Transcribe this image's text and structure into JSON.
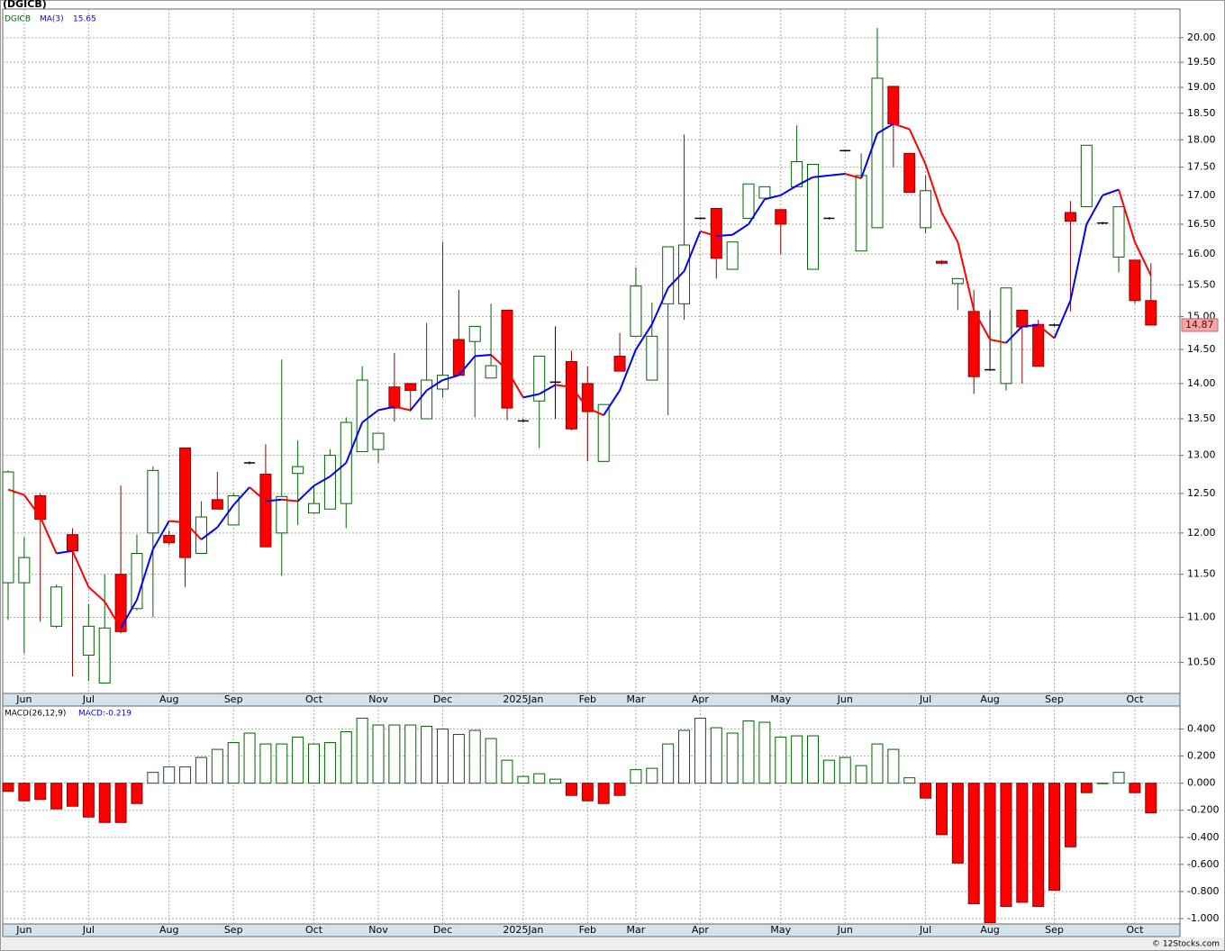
{
  "chart_data": [
    {
      "type": "candlestick",
      "title": "(DGICB)",
      "symbol": "DGICB",
      "log_scale": true,
      "grid": true,
      "up_color": "#006400",
      "down_color": "#ff0000",
      "categories": [
        null,
        "Jun",
        null,
        null,
        null,
        "Jul",
        null,
        null,
        null,
        null,
        "Aug",
        null,
        null,
        null,
        "Sep",
        null,
        null,
        null,
        null,
        "Oct",
        null,
        null,
        null,
        "Nov",
        null,
        null,
        null,
        "Dec",
        null,
        null,
        null,
        null,
        "2025Jan",
        null,
        null,
        null,
        "Feb",
        null,
        null,
        "Mar",
        null,
        null,
        null,
        "Apr",
        null,
        null,
        null,
        null,
        "May",
        null,
        null,
        null,
        "Jun",
        null,
        null,
        null,
        null,
        "Jul",
        null,
        null,
        null,
        "Aug",
        null,
        null,
        null,
        "Sep",
        null,
        null,
        null,
        null,
        "Oct",
        null
      ],
      "open": [
        11.4,
        11.4,
        12.47,
        10.9,
        11.98,
        10.58,
        10.28,
        11.5,
        11.1,
        12.0,
        11.97,
        13.1,
        11.75,
        12.42,
        12.1,
        12.9,
        12.75,
        12.0,
        12.76,
        12.25,
        12.3,
        12.37,
        13.05,
        13.08,
        13.95,
        14.0,
        13.5,
        13.92,
        14.65,
        14.62,
        14.08,
        15.1,
        13.47,
        13.75,
        14.02,
        14.32,
        14.0,
        12.92,
        14.4,
        14.7,
        14.05,
        15.2,
        15.2,
        16.6,
        16.77,
        15.75,
        16.6,
        16.95,
        16.75,
        17.15,
        15.75,
        16.6,
        17.8,
        16.05,
        16.44,
        19.02,
        17.75,
        16.44,
        15.88,
        15.52,
        15.08,
        14.2,
        14.0,
        15.1,
        14.88,
        14.87,
        16.7,
        16.8,
        16.52,
        15.95,
        15.9,
        15.25
      ],
      "high": [
        12.8,
        11.95,
        12.5,
        11.38,
        12.06,
        11.15,
        11.5,
        12.6,
        11.98,
        12.85,
        12.03,
        13.1,
        12.4,
        12.78,
        12.5,
        12.92,
        13.15,
        14.35,
        13.2,
        12.6,
        13.08,
        13.52,
        14.25,
        13.3,
        14.45,
        14.0,
        14.9,
        16.2,
        15.42,
        14.85,
        15.2,
        15.1,
        13.5,
        14.4,
        14.85,
        14.48,
        14.25,
        13.7,
        14.75,
        15.78,
        15.22,
        16.12,
        18.1,
        16.62,
        16.77,
        16.2,
        17.2,
        17.15,
        16.75,
        18.27,
        17.55,
        16.62,
        17.82,
        17.75,
        20.2,
        19.02,
        17.75,
        17.35,
        15.9,
        15.6,
        15.42,
        15.1,
        15.45,
        15.1,
        14.95,
        14.89,
        16.9,
        17.9,
        16.54,
        16.8,
        15.9,
        15.85
      ],
      "low": [
        10.97,
        10.6,
        10.95,
        10.88,
        10.35,
        10.3,
        10.28,
        10.82,
        11.08,
        11.0,
        11.85,
        11.35,
        11.75,
        12.3,
        12.1,
        12.88,
        11.83,
        11.48,
        12.1,
        12.25,
        12.3,
        12.06,
        13.05,
        12.9,
        13.46,
        13.6,
        13.5,
        13.8,
        14.12,
        13.52,
        14.08,
        13.48,
        13.45,
        13.1,
        13.5,
        13.34,
        12.92,
        12.92,
        14.18,
        14.7,
        14.05,
        13.55,
        14.95,
        16.58,
        15.6,
        15.75,
        16.6,
        16.95,
        16.0,
        17.15,
        15.75,
        16.58,
        17.78,
        16.05,
        16.44,
        17.5,
        17.05,
        16.35,
        15.83,
        15.1,
        13.85,
        14.18,
        13.9,
        14.0,
        14.25,
        14.85,
        15.08,
        16.8,
        16.5,
        15.7,
        15.2,
        14.87
      ],
      "close": [
        12.78,
        11.7,
        12.17,
        11.35,
        11.78,
        10.9,
        10.88,
        10.84,
        11.75,
        12.8,
        11.88,
        11.7,
        12.2,
        12.3,
        12.47,
        12.9,
        11.83,
        12.46,
        12.85,
        12.37,
        13.0,
        13.45,
        14.05,
        13.3,
        13.65,
        13.9,
        14.05,
        14.12,
        14.12,
        14.85,
        14.26,
        13.65,
        13.47,
        14.4,
        14.02,
        13.36,
        13.6,
        13.7,
        14.18,
        15.48,
        14.7,
        16.12,
        16.15,
        16.6,
        15.93,
        16.2,
        17.2,
        17.15,
        16.5,
        17.6,
        17.55,
        16.6,
        17.8,
        17.35,
        19.18,
        18.3,
        17.05,
        17.08,
        15.85,
        15.6,
        14.1,
        14.2,
        15.45,
        14.84,
        14.25,
        14.87,
        16.55,
        17.9,
        16.52,
        16.8,
        15.25,
        14.87
      ],
      "ma": {
        "name": "MA(3)",
        "up_color": "#0000ff",
        "down_color": "#ff0000",
        "values": [
          12.55,
          12.48,
          12.2,
          11.75,
          11.78,
          11.35,
          11.18,
          10.88,
          11.2,
          11.8,
          12.15,
          12.13,
          11.92,
          12.07,
          12.35,
          12.58,
          12.4,
          12.42,
          12.4,
          12.6,
          12.72,
          12.9,
          13.45,
          13.62,
          13.67,
          13.62,
          13.9,
          14.05,
          14.12,
          14.4,
          14.42,
          14.2,
          13.8,
          13.85,
          13.98,
          13.95,
          13.65,
          13.55,
          13.9,
          14.5,
          14.88,
          15.45,
          15.72,
          16.38,
          16.3,
          16.32,
          16.5,
          16.93,
          17.0,
          17.17,
          17.32,
          17.35,
          17.38,
          17.3,
          18.12,
          18.3,
          18.2,
          17.55,
          16.7,
          16.2,
          15.1,
          14.65,
          14.6,
          14.85,
          14.87,
          14.67,
          15.25,
          16.5,
          17.0,
          17.1,
          16.2,
          15.65
        ]
      },
      "ylim": [
        10.17,
        20.6
      ],
      "yticks": [
        {
          "value": 10.5,
          "label": "10.50"
        },
        {
          "value": 11,
          "label": "11.00"
        },
        {
          "value": 11.5,
          "label": "11.50"
        },
        {
          "value": 12,
          "label": "12.00"
        },
        {
          "value": 12.5,
          "label": "12.50"
        },
        {
          "value": 13,
          "label": "13.00"
        },
        {
          "value": 13.5,
          "label": "13.50"
        },
        {
          "value": 14,
          "label": "14.00"
        },
        {
          "value": 14.5,
          "label": "14.50"
        },
        {
          "value": 15,
          "label": "15.00"
        },
        {
          "value": 15.5,
          "label": "15.50"
        },
        {
          "value": 16,
          "label": "16.00"
        },
        {
          "value": 16.5,
          "label": "16.50"
        },
        {
          "value": 17,
          "label": "17.00"
        },
        {
          "value": 17.5,
          "label": "17.50"
        },
        {
          "value": 18,
          "label": "18.00"
        },
        {
          "value": 18.5,
          "label": "18.50"
        },
        {
          "value": 19,
          "label": "19.00"
        },
        {
          "value": 19.5,
          "label": "19.50"
        },
        {
          "value": 20,
          "label": "20.00"
        }
      ]
    },
    {
      "type": "bar",
      "name": "MACD(26,12,9)",
      "value_text": "MACD:-0.219",
      "grid": true,
      "up_color": "#006400",
      "down_color": "#ff0000",
      "categories": [
        null,
        "Jun",
        null,
        null,
        null,
        "Jul",
        null,
        null,
        null,
        null,
        "Aug",
        null,
        null,
        null,
        "Sep",
        null,
        null,
        null,
        null,
        "Oct",
        null,
        null,
        null,
        "Nov",
        null,
        null,
        null,
        "Dec",
        null,
        null,
        null,
        null,
        "2025Jan",
        null,
        null,
        null,
        "Feb",
        null,
        null,
        "Mar",
        null,
        null,
        null,
        "Apr",
        null,
        null,
        null,
        null,
        "May",
        null,
        null,
        null,
        "Jun",
        null,
        null,
        null,
        null,
        "Jul",
        null,
        null,
        null,
        "Aug",
        null,
        null,
        null,
        "Sep",
        null,
        null,
        null,
        null,
        "Oct",
        null
      ],
      "values": [
        -0.06,
        -0.13,
        -0.12,
        -0.19,
        -0.17,
        -0.25,
        -0.29,
        -0.29,
        -0.15,
        0.08,
        0.12,
        0.12,
        0.19,
        0.25,
        0.3,
        0.37,
        0.29,
        0.29,
        0.34,
        0.29,
        0.3,
        0.38,
        0.48,
        0.43,
        0.43,
        0.43,
        0.42,
        0.4,
        0.36,
        0.39,
        0.33,
        0.17,
        0.05,
        0.07,
        0.03,
        -0.09,
        -0.13,
        -0.15,
        -0.09,
        0.1,
        0.11,
        0.29,
        0.39,
        0.48,
        0.41,
        0.37,
        0.46,
        0.45,
        0.34,
        0.35,
        0.35,
        0.17,
        0.19,
        0.13,
        0.29,
        0.25,
        0.04,
        -0.11,
        -0.38,
        -0.59,
        -0.89,
        -1.03,
        -0.91,
        -0.88,
        -0.91,
        -0.79,
        -0.47,
        -0.07,
        0.0,
        0.08,
        -0.07,
        -0.219
      ],
      "ylim": [
        -1.04,
        0.57
      ],
      "yticks": [
        {
          "value": -1,
          "label": "-1.000"
        },
        {
          "value": -0.8,
          "label": "-0.800"
        },
        {
          "value": -0.6,
          "label": "-0.600"
        },
        {
          "value": -0.4,
          "label": "-0.400"
        },
        {
          "value": -0.2,
          "label": "-0.200"
        },
        {
          "value": 0,
          "label": "0.000"
        },
        {
          "value": 0.2,
          "label": "0.200"
        },
        {
          "value": 0.4,
          "label": "0.400"
        }
      ]
    }
  ],
  "footer": "© 12Stocks.com"
}
